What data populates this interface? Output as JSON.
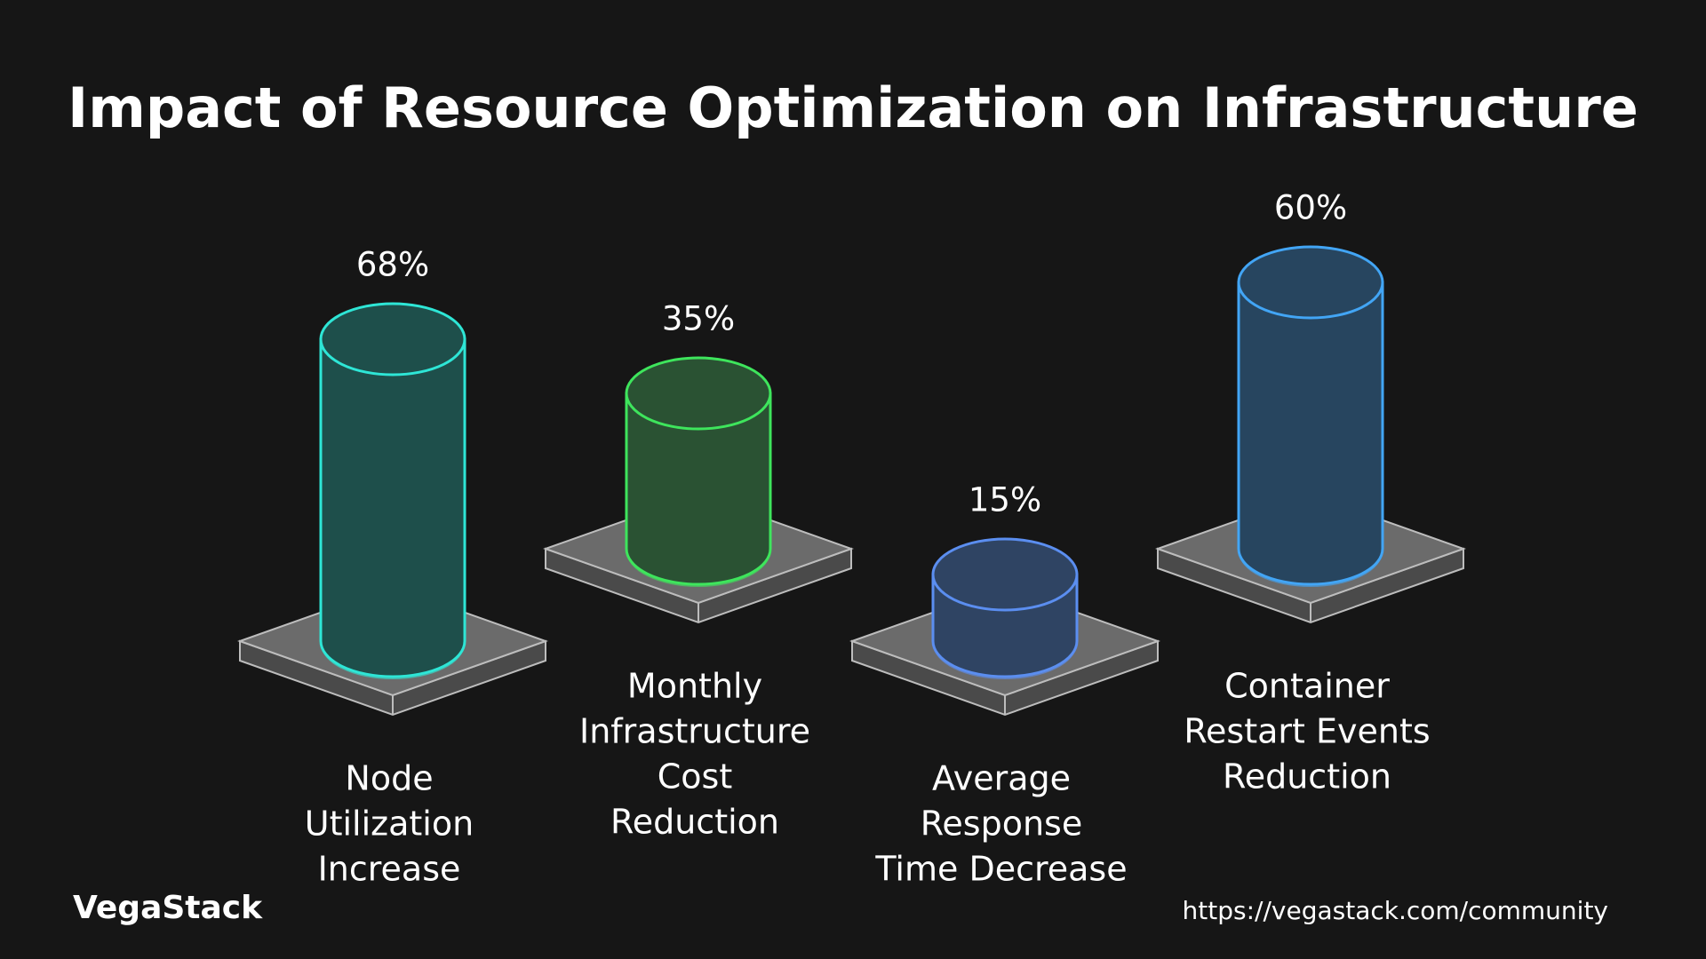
{
  "chart_data": {
    "type": "cylinder-bar",
    "title": "Impact of Resource Optimization on Infrastructure",
    "categories": [
      [
        "Node",
        "Utilization",
        "Increase"
      ],
      [
        "Monthly",
        "Infrastructure",
        "Cost",
        "Reduction"
      ],
      [
        "Average",
        "Response",
        "Time Decrease"
      ],
      [
        "Container",
        "Restart Events",
        "Reduction"
      ]
    ],
    "values": [
      68,
      35,
      15,
      60
    ],
    "value_labels": [
      "68%",
      "35%",
      "15%",
      "60%"
    ],
    "colors": [
      "#2ee6d6",
      "#3ee55c",
      "#5b8ef0",
      "#42a5f5"
    ],
    "fill_colors": [
      "#1e4f4b",
      "#2a5233",
      "#2f4463",
      "#27455f"
    ]
  },
  "footer": {
    "brand": "VegaStack",
    "url": "https://vegastack.com/community"
  }
}
